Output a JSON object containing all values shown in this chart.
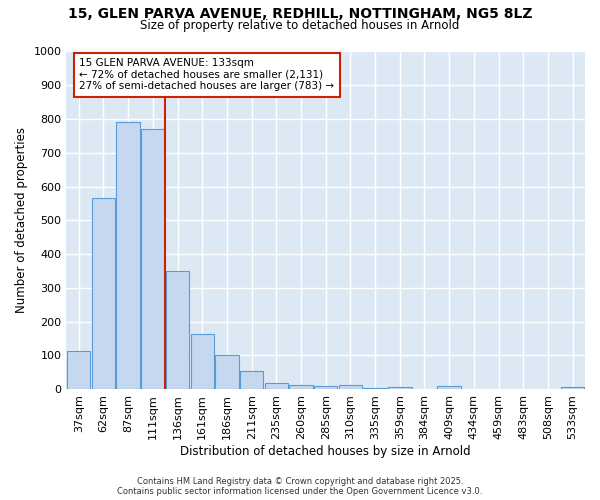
{
  "title_line1": "15, GLEN PARVA AVENUE, REDHILL, NOTTINGHAM, NG5 8LZ",
  "title_line2": "Size of property relative to detached houses in Arnold",
  "xlabel": "Distribution of detached houses by size in Arnold",
  "ylabel": "Number of detached properties",
  "categories": [
    "37sqm",
    "62sqm",
    "87sqm",
    "111sqm",
    "136sqm",
    "161sqm",
    "186sqm",
    "211sqm",
    "235sqm",
    "260sqm",
    "285sqm",
    "310sqm",
    "335sqm",
    "359sqm",
    "384sqm",
    "409sqm",
    "434sqm",
    "459sqm",
    "483sqm",
    "508sqm",
    "533sqm"
  ],
  "values": [
    113,
    565,
    790,
    770,
    350,
    162,
    100,
    53,
    18,
    12,
    8,
    12,
    3,
    5,
    0,
    9,
    0,
    0,
    0,
    0,
    5
  ],
  "bar_color": "#c5d8ef",
  "bar_edge_color": "#5b9bd5",
  "vline_index": 4,
  "vline_color": "#cc2200",
  "annotation_line1": "15 GLEN PARVA AVENUE: 133sqm",
  "annotation_line2": "← 72% of detached houses are smaller (2,131)",
  "annotation_line3": "27% of semi-detached houses are larger (783) →",
  "annotation_box_facecolor": "#ffffff",
  "annotation_box_edgecolor": "#cc2200",
  "ylim": [
    0,
    1000
  ],
  "yticks": [
    0,
    100,
    200,
    300,
    400,
    500,
    600,
    700,
    800,
    900,
    1000
  ],
  "fig_facecolor": "#ffffff",
  "ax_facecolor": "#dce9f5",
  "grid_color": "#ffffff",
  "footer_line1": "Contains HM Land Registry data © Crown copyright and database right 2025.",
  "footer_line2": "Contains public sector information licensed under the Open Government Licence v3.0."
}
